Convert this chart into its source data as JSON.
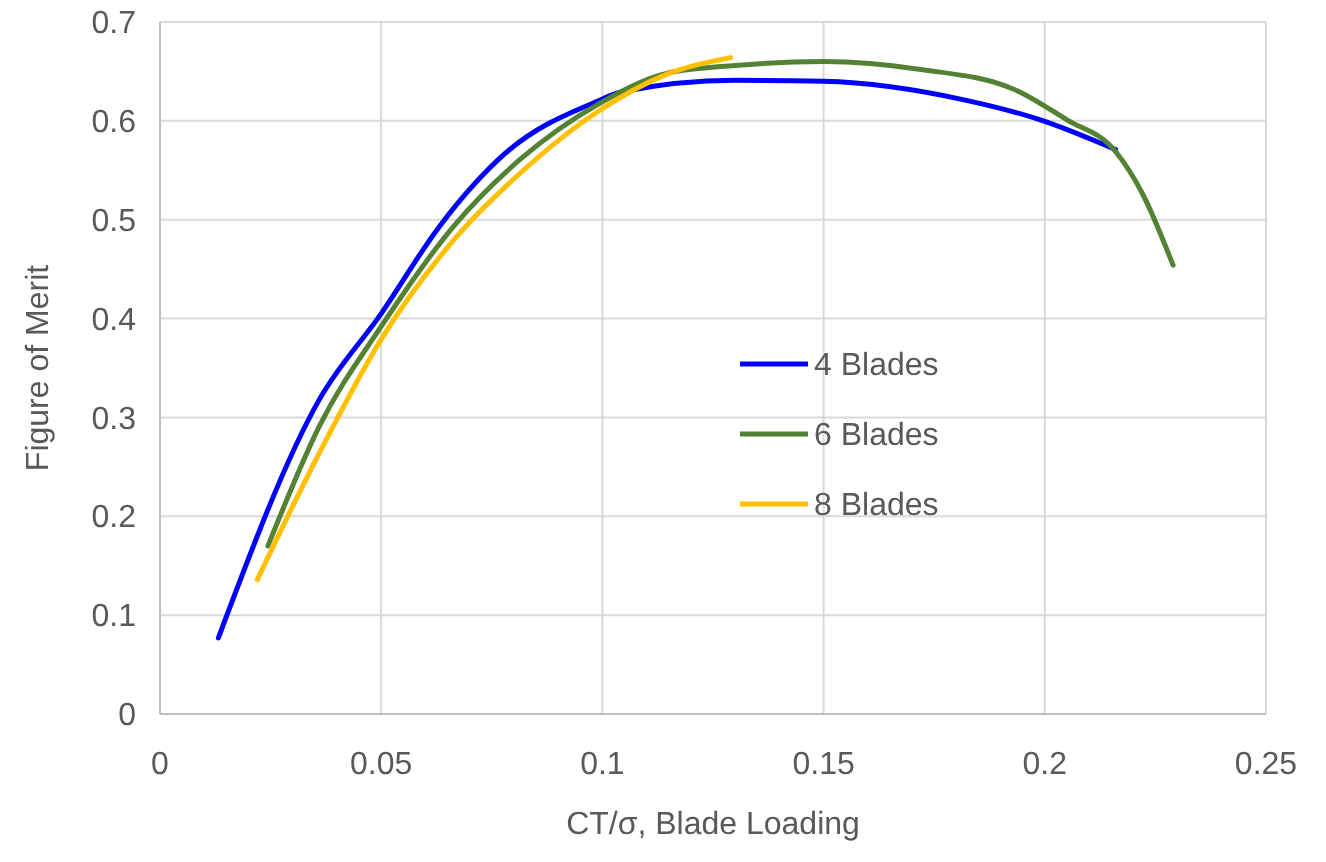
{
  "chart_data": {
    "type": "line",
    "xlabel": "CT/σ, Blade Loading",
    "ylabel": "Figure of Merit",
    "xlim": [
      0,
      0.25
    ],
    "ylim": [
      0,
      0.7
    ],
    "xticks": [
      0,
      0.05,
      0.1,
      0.15,
      0.2,
      0.25
    ],
    "yticks": [
      0,
      0.1,
      0.2,
      0.3,
      0.4,
      0.5,
      0.6,
      0.7
    ],
    "grid": true,
    "legend": "right",
    "marker": "none",
    "line_style": "solid",
    "series": [
      {
        "name": "4 Blades",
        "color": "#0000ff",
        "x": [
          0.0132,
          0.036,
          0.05,
          0.0633,
          0.078,
          0.0995,
          0.104,
          0.13,
          0.15,
          0.182,
          0.199,
          0.216
        ],
        "values": [
          0.077,
          0.318,
          0.405,
          0.494,
          0.567,
          0.621,
          0.629,
          0.641,
          0.64,
          0.621,
          0.601,
          0.571
        ]
      },
      {
        "name": "6 Blades",
        "color": "#548235",
        "x": [
          0.0244,
          0.036,
          0.05,
          0.0665,
          0.0814,
          0.0995,
          0.1145,
          0.13,
          0.15,
          0.172,
          0.193,
          0.205,
          0.216,
          0.222,
          0.229
        ],
        "values": [
          0.17,
          0.291,
          0.392,
          0.494,
          0.561,
          0.618,
          0.648,
          0.656,
          0.66,
          0.652,
          0.632,
          0.601,
          0.569,
          0.527,
          0.454
        ]
      },
      {
        "name": "8 Blades",
        "color": "#ffc000",
        "x": [
          0.022,
          0.036,
          0.05,
          0.0665,
          0.0814,
          0.0995,
          0.1145,
          0.129
        ],
        "values": [
          0.136,
          0.264,
          0.379,
          0.48,
          0.547,
          0.611,
          0.647,
          0.664
        ]
      }
    ]
  }
}
